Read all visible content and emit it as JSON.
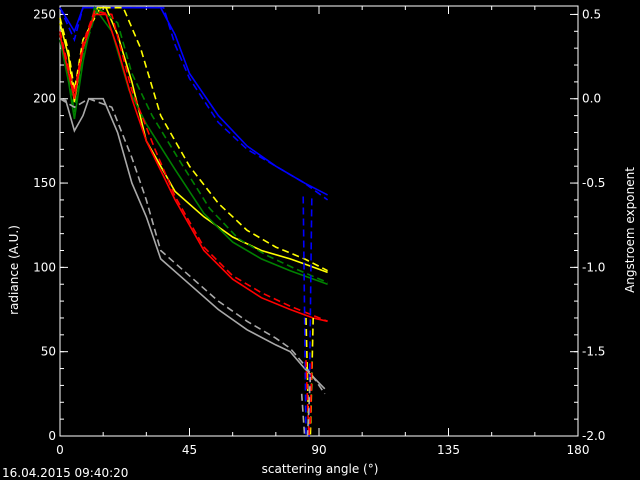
{
  "timestamp": "16.04.2015 09:40:20",
  "chart_data": {
    "type": "line",
    "xlabel": "scattering angle (°)",
    "ylabel": "radiance (A.U.)",
    "y2label": "Angstroem exponent",
    "xlim": [
      0,
      180
    ],
    "ylim": [
      0,
      255
    ],
    "y2lim": [
      -2.0,
      0.55
    ],
    "x_ticks": [
      "0",
      "45",
      "90",
      "135",
      "180"
    ],
    "y_ticks": [
      "0",
      "50",
      "100",
      "150",
      "200",
      "250"
    ],
    "y2_ticks": [
      "-2.0",
      "-1.5",
      "-1.0",
      "-0.5",
      "0.0",
      "0.5"
    ],
    "grid": false,
    "series": [
      {
        "color": "#0000ff",
        "style": "solid",
        "axis": "left",
        "x": [
          0,
          5,
          8,
          14,
          20,
          30,
          35,
          40,
          45,
          55,
          65,
          75,
          85,
          93
        ],
        "y": [
          254,
          240,
          254,
          254,
          254,
          254,
          254,
          238,
          215,
          190,
          172,
          160,
          150,
          143
        ]
      },
      {
        "color": "#0000ff",
        "style": "dashed",
        "axis": "left",
        "x": [
          0,
          5,
          8,
          14,
          20,
          30,
          36,
          40,
          45,
          55,
          65,
          75,
          85,
          93
        ],
        "y": [
          254,
          235,
          254,
          254,
          254,
          254,
          254,
          232,
          212,
          186,
          170,
          160,
          150,
          140
        ]
      },
      {
        "color": "#ffff00",
        "style": "solid",
        "axis": "left",
        "x": [
          0,
          3,
          5,
          8,
          13,
          16,
          20,
          25,
          30,
          40,
          50,
          60,
          70,
          80,
          85,
          93
        ],
        "y": [
          245,
          225,
          198,
          230,
          254,
          254,
          238,
          210,
          175,
          145,
          130,
          118,
          110,
          105,
          102,
          97
        ]
      },
      {
        "color": "#ffff00",
        "style": "dashed",
        "axis": "left",
        "x": [
          0,
          3,
          5,
          8,
          14,
          22,
          28,
          35,
          45,
          55,
          65,
          75,
          85,
          93
        ],
        "y": [
          248,
          228,
          205,
          235,
          254,
          254,
          230,
          190,
          160,
          138,
          122,
          112,
          105,
          98
        ]
      },
      {
        "color": "#008000",
        "style": "solid",
        "axis": "left",
        "x": [
          0,
          3,
          5,
          8,
          12,
          18,
          24,
          30,
          40,
          50,
          60,
          70,
          80,
          93
        ],
        "y": [
          235,
          210,
          188,
          222,
          254,
          240,
          205,
          185,
          158,
          132,
          115,
          105,
          98,
          90
        ]
      },
      {
        "color": "#008000",
        "style": "dashed",
        "axis": "left",
        "x": [
          0,
          3,
          5,
          8,
          13,
          20,
          25,
          32,
          42,
          52,
          62,
          72,
          82,
          93
        ],
        "y": [
          238,
          215,
          192,
          226,
          254,
          245,
          215,
          190,
          162,
          135,
          117,
          107,
          99,
          91
        ]
      },
      {
        "color": "#ff0000",
        "style": "solid",
        "axis": "left",
        "x": [
          0,
          3,
          5,
          8,
          12,
          16,
          20,
          25,
          30,
          40,
          50,
          60,
          70,
          80,
          88,
          93
        ],
        "y": [
          238,
          215,
          200,
          230,
          250,
          250,
          230,
          200,
          175,
          140,
          110,
          93,
          82,
          75,
          70,
          68
        ]
      },
      {
        "color": "#ff0000",
        "style": "dashed",
        "axis": "left",
        "x": [
          0,
          3,
          5,
          8,
          12,
          18,
          25,
          33,
          40,
          50,
          60,
          70,
          80,
          93
        ],
        "y": [
          240,
          218,
          203,
          233,
          252,
          250,
          205,
          170,
          142,
          112,
          95,
          85,
          77,
          68
        ]
      },
      {
        "color": "#a9a9a9",
        "style": "solid",
        "axis": "left",
        "x": [
          0,
          2,
          5,
          8,
          10,
          15,
          20,
          25,
          30,
          35,
          45,
          55,
          65,
          75,
          80,
          85,
          88,
          92
        ],
        "y": [
          200,
          199,
          181,
          190,
          200,
          200,
          180,
          150,
          130,
          105,
          90,
          75,
          63,
          54,
          50,
          40,
          35,
          28
        ]
      },
      {
        "color": "#a9a9a9",
        "style": "dashed",
        "axis": "left",
        "x": [
          0,
          5,
          10,
          18,
          25,
          30,
          35,
          45,
          55,
          65,
          75,
          80,
          85,
          88,
          92
        ],
        "y": [
          200,
          195,
          200,
          195,
          165,
          140,
          110,
          95,
          80,
          68,
          58,
          52,
          42,
          35,
          25
        ]
      },
      {
        "color": "#0000ff",
        "style": "dashed",
        "axis": "right",
        "x": [
          84.5,
          85.5,
          86.5,
          87.5
        ],
        "y": [
          -0.58,
          -2.0,
          -2.0,
          -0.58
        ]
      },
      {
        "color": "#ffff00",
        "style": "dashed",
        "axis": "right",
        "x": [
          85.5,
          86.5,
          87.0,
          88.0
        ],
        "y": [
          -1.3,
          -2.0,
          -2.0,
          -1.3
        ]
      },
      {
        "color": "#ff0000",
        "style": "dashed",
        "axis": "right",
        "x": [
          85.5,
          86.5,
          87.0,
          87.5
        ],
        "y": [
          -1.55,
          -2.0,
          -1.9,
          -1.55
        ]
      },
      {
        "color": "#a9a9a9",
        "style": "dashed",
        "axis": "right",
        "x": [
          84.0,
          85.0,
          86.0,
          87.0
        ],
        "y": [
          -1.75,
          -2.0,
          -2.0,
          -1.65
        ]
      }
    ]
  }
}
